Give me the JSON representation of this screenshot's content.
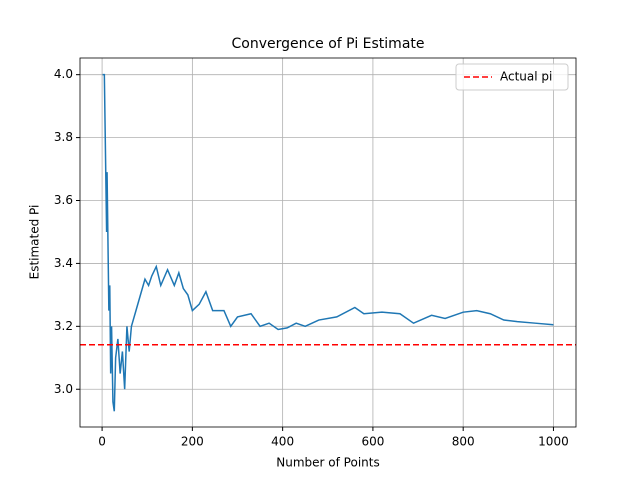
{
  "chart_data": {
    "type": "line",
    "title": "Convergence of Pi Estimate",
    "x_label": "Number of Points",
    "y_label": "Estimated Pi",
    "x": [
      1,
      5,
      10,
      11,
      13,
      15,
      17,
      19,
      21,
      24,
      27,
      30,
      35,
      40,
      45,
      50,
      55,
      60,
      65,
      75,
      85,
      95,
      103,
      110,
      120,
      130,
      145,
      160,
      170,
      180,
      190,
      200,
      215,
      230,
      245,
      270,
      285,
      300,
      330,
      350,
      370,
      390,
      410,
      430,
      450,
      480,
      520,
      560,
      580,
      620,
      660,
      690,
      730,
      760,
      800,
      830,
      860,
      890,
      920,
      960,
      1000
    ],
    "series": [
      {
        "color": "#1f77b4",
        "values": [
          4.0,
          4.0,
          3.5,
          3.69,
          3.47,
          3.25,
          3.33,
          3.05,
          3.2,
          2.96,
          2.93,
          3.1,
          3.16,
          3.05,
          3.12,
          3.0,
          3.2,
          3.12,
          3.2,
          3.25,
          3.3,
          3.35,
          3.33,
          3.36,
          3.39,
          3.33,
          3.38,
          3.33,
          3.37,
          3.32,
          3.3,
          3.25,
          3.27,
          3.31,
          3.25,
          3.25,
          3.2,
          3.23,
          3.24,
          3.2,
          3.21,
          3.19,
          3.195,
          3.21,
          3.2,
          3.22,
          3.23,
          3.26,
          3.24,
          3.245,
          3.24,
          3.21,
          3.235,
          3.225,
          3.245,
          3.25,
          3.24,
          3.22,
          3.215,
          3.21,
          3.205
        ]
      }
    ],
    "hlines": [
      {
        "name": "Actual pi",
        "value": 3.14159,
        "color": "red",
        "style": "dashed"
      }
    ],
    "xlim": [
      -48.95,
      1049.95
    ],
    "ylim": [
      2.88,
      4.053
    ],
    "xticks": [
      0,
      200,
      400,
      600,
      800,
      1000
    ],
    "yticks": [
      {
        "value": 3,
        "label": "3.0"
      },
      3.2,
      3.4,
      3.6,
      3.8,
      {
        "value": 4,
        "label": "4.0"
      }
    ],
    "grid": true,
    "legend": "upper right"
  }
}
